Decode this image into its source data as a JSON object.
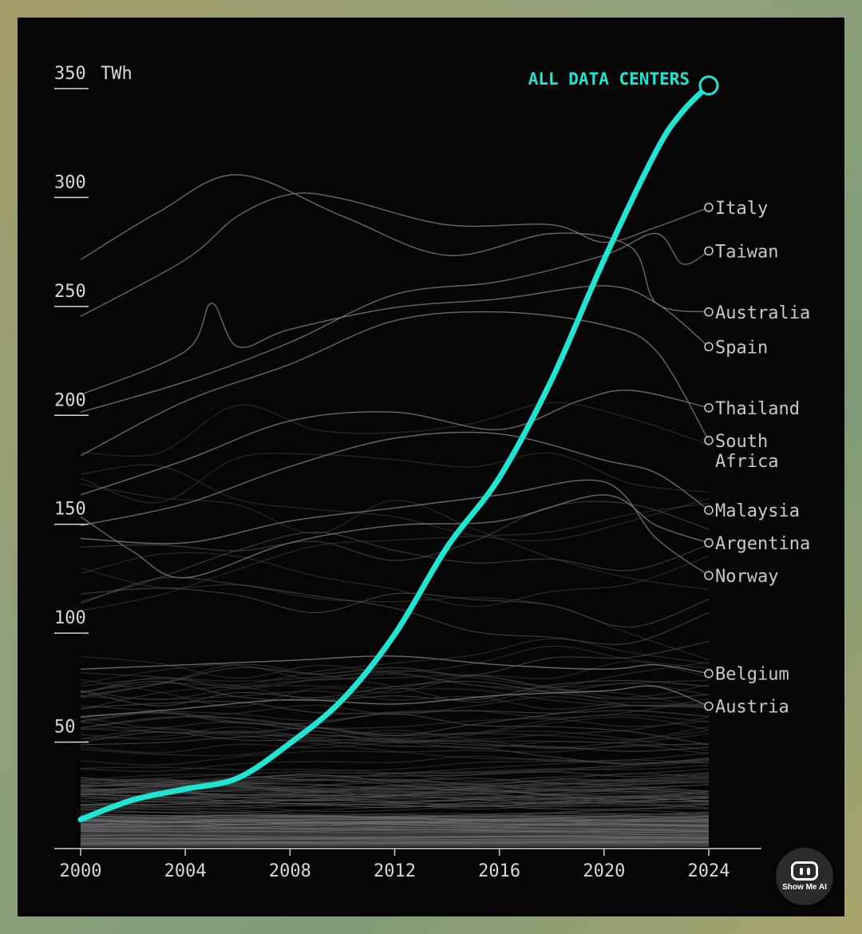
{
  "chart_data": {
    "type": "line",
    "ylabel_unit": "TWh",
    "ylim": [
      0,
      350
    ],
    "xlim": [
      2000,
      2024
    ],
    "y_ticks": [
      50,
      100,
      150,
      200,
      250,
      300,
      350
    ],
    "x_ticks": [
      2000,
      2004,
      2008,
      2012,
      2016,
      2020,
      2024
    ],
    "highlight": {
      "name": "ALL DATA CENTERS",
      "color": "#1fe5d3",
      "x": [
        2000,
        2002,
        2004,
        2006,
        2008,
        2010,
        2012,
        2014,
        2016,
        2018,
        2020,
        2022,
        2023,
        2024
      ],
      "y": [
        13,
        22,
        27,
        32,
        48,
        68,
        98,
        138,
        170,
        215,
        270,
        320,
        338,
        350
      ]
    },
    "labeled_countries": [
      {
        "name": "Italy",
        "y2024": 294
      },
      {
        "name": "Taiwan",
        "y2024": 274
      },
      {
        "name": "Australia",
        "y2024": 246
      },
      {
        "name": "Spain",
        "y2024": 230
      },
      {
        "name": "Thailand",
        "y2024": 202
      },
      {
        "name": "South\nAfrica",
        "y2024": 187
      },
      {
        "name": "Malaysia",
        "y2024": 155
      },
      {
        "name": "Argentina",
        "y2024": 140
      },
      {
        "name": "Norway",
        "y2024": 125
      },
      {
        "name": "Belgium",
        "y2024": 80
      },
      {
        "name": "Austria",
        "y2024": 65
      }
    ],
    "country_series": [
      {
        "name": "Italy",
        "x": [
          2000,
          2004,
          2006,
          2008,
          2010,
          2014,
          2018,
          2020,
          2022,
          2024
        ],
        "y": [
          244,
          270,
          290,
          300,
          298,
          286,
          286,
          278,
          285,
          294
        ]
      },
      {
        "name": "Taiwan",
        "x": [
          2000,
          2004,
          2008,
          2012,
          2016,
          2020,
          2022,
          2023,
          2024
        ],
        "y": [
          200,
          214,
          232,
          254,
          260,
          272,
          282,
          268,
          274
        ]
      },
      {
        "name": "Australia",
        "x": [
          2000,
          2003,
          2006,
          2010,
          2014,
          2018,
          2021,
          2022,
          2024
        ],
        "y": [
          270,
          292,
          309,
          290,
          272,
          282,
          276,
          250,
          246
        ]
      },
      {
        "name": "Spain",
        "x": [
          2000,
          2004,
          2005,
          2006,
          2008,
          2012,
          2016,
          2020,
          2022,
          2024
        ],
        "y": [
          208,
          228,
          250,
          230,
          238,
          248,
          252,
          258,
          250,
          230
        ]
      },
      {
        "name": "Thailand",
        "x": [
          2000,
          2004,
          2008,
          2012,
          2016,
          2019,
          2021,
          2024
        ],
        "y": [
          162,
          178,
          196,
          200,
          192,
          205,
          210,
          202
        ]
      },
      {
        "name": "South Africa",
        "x": [
          2000,
          2004,
          2008,
          2012,
          2016,
          2020,
          2022,
          2024
        ],
        "y": [
          180,
          205,
          222,
          242,
          246,
          240,
          228,
          187
        ]
      },
      {
        "name": "Malaysia",
        "x": [
          2000,
          2004,
          2008,
          2012,
          2016,
          2020,
          2022,
          2024
        ],
        "y": [
          148,
          158,
          175,
          188,
          190,
          178,
          172,
          155
        ]
      },
      {
        "name": "Argentina",
        "x": [
          2000,
          2002,
          2004,
          2008,
          2012,
          2016,
          2020,
          2022,
          2024
        ],
        "y": [
          152,
          136,
          124,
          140,
          148,
          150,
          162,
          148,
          140
        ]
      },
      {
        "name": "Norway",
        "x": [
          2000,
          2004,
          2008,
          2012,
          2016,
          2020,
          2022,
          2024
        ],
        "y": [
          142,
          140,
          150,
          156,
          162,
          168,
          142,
          125
        ]
      },
      {
        "name": "Belgium",
        "x": [
          2000,
          2004,
          2008,
          2012,
          2016,
          2020,
          2022,
          2024
        ],
        "y": [
          82,
          84,
          86,
          88,
          84,
          82,
          84,
          80
        ]
      },
      {
        "name": "Austria",
        "x": [
          2000,
          2004,
          2008,
          2012,
          2016,
          2020,
          2022,
          2024
        ],
        "y": [
          60,
          64,
          68,
          66,
          70,
          72,
          74,
          65
        ]
      }
    ]
  }
}
